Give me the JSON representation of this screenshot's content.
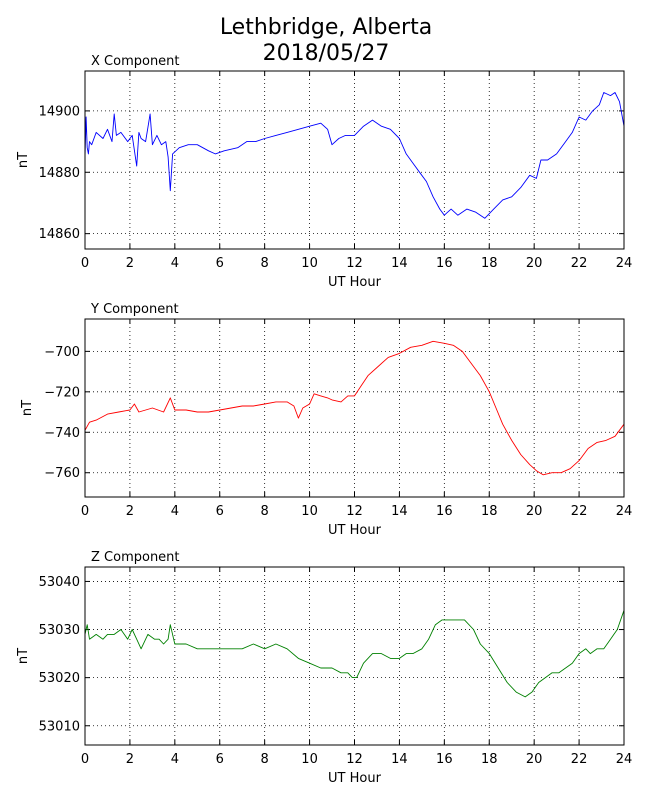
{
  "figure": {
    "title_line1": "Lethbridge, Alberta",
    "title_line2": "2018/05/27"
  },
  "chart_data": [
    {
      "type": "line",
      "title": "X Component",
      "xlabel": "UT Hour",
      "ylabel": "nT",
      "xlim": [
        0,
        24
      ],
      "ylim": [
        14855,
        14913
      ],
      "xticks": [
        0,
        2,
        4,
        6,
        8,
        10,
        12,
        14,
        16,
        18,
        20,
        22,
        24
      ],
      "yticks": [
        14860,
        14880,
        14900
      ],
      "grid": true,
      "color": "#0000ff",
      "x": [
        0,
        0.05,
        0.1,
        0.15,
        0.2,
        0.3,
        0.5,
        0.8,
        1.0,
        1.2,
        1.3,
        1.4,
        1.6,
        1.9,
        2.1,
        2.3,
        2.4,
        2.5,
        2.7,
        2.9,
        3.0,
        3.2,
        3.4,
        3.6,
        3.7,
        3.8,
        3.9,
        4.2,
        4.6,
        5.0,
        5.5,
        5.8,
        6.2,
        6.8,
        7.2,
        7.6,
        8.0,
        8.5,
        9.0,
        9.5,
        10.0,
        10.5,
        10.8,
        11.0,
        11.3,
        11.6,
        12.0,
        12.4,
        12.8,
        13.2,
        13.6,
        14.0,
        14.3,
        14.6,
        14.9,
        15.2,
        15.5,
        15.8,
        16.0,
        16.3,
        16.6,
        17.0,
        17.4,
        17.8,
        18.2,
        18.6,
        19.0,
        19.4,
        19.8,
        20.1,
        20.3,
        20.6,
        21.0,
        21.4,
        21.7,
        22.0,
        22.3,
        22.6,
        22.9,
        23.1,
        23.4,
        23.6,
        23.8,
        24.0
      ],
      "values": [
        14885,
        14898,
        14888,
        14886,
        14890,
        14889,
        14893,
        14891,
        14894,
        14890,
        14899,
        14892,
        14893,
        14890,
        14892,
        14882,
        14893,
        14891,
        14890,
        14899,
        14889,
        14892,
        14889,
        14890,
        14885,
        14874,
        14886,
        14888,
        14889,
        14889,
        14887,
        14886,
        14887,
        14888,
        14890,
        14890,
        14891,
        14892,
        14893,
        14894,
        14895,
        14896,
        14894,
        14889,
        14891,
        14892,
        14892,
        14895,
        14897,
        14895,
        14894,
        14891,
        14886,
        14883,
        14880,
        14877,
        14872,
        14868,
        14866,
        14868,
        14866,
        14868,
        14867,
        14865,
        14868,
        14871,
        14872,
        14875,
        14879,
        14878,
        14884,
        14884,
        14886,
        14890,
        14893,
        14898,
        14897,
        14900,
        14902,
        14906,
        14905,
        14906,
        14903,
        14895
      ]
    },
    {
      "type": "line",
      "title": "Y Component",
      "xlabel": "UT Hour",
      "ylabel": "nT",
      "xlim": [
        0,
        24
      ],
      "ylim": [
        -772,
        -684
      ],
      "xticks": [
        0,
        2,
        4,
        6,
        8,
        10,
        12,
        14,
        16,
        18,
        20,
        22,
        24
      ],
      "yticks": [
        -700,
        -720,
        -740,
        -760
      ],
      "grid": true,
      "color": "#ff0000",
      "x": [
        0,
        0.2,
        0.5,
        1.0,
        1.5,
        2.0,
        2.2,
        2.4,
        3.0,
        3.5,
        3.8,
        4.0,
        4.5,
        5.0,
        5.5,
        6.0,
        6.5,
        7.0,
        7.5,
        8.0,
        8.5,
        9.0,
        9.3,
        9.5,
        9.7,
        10.0,
        10.2,
        10.5,
        10.8,
        11.0,
        11.4,
        11.7,
        12.0,
        12.3,
        12.6,
        13.0,
        13.5,
        14.0,
        14.5,
        15.0,
        15.5,
        16.0,
        16.4,
        16.8,
        17.2,
        17.6,
        18.0,
        18.3,
        18.6,
        19.0,
        19.4,
        19.8,
        20.1,
        20.4,
        20.8,
        21.2,
        21.6,
        22.0,
        22.4,
        22.8,
        23.2,
        23.6,
        24.0
      ],
      "values": [
        -739,
        -735,
        -734,
        -731,
        -730,
        -729,
        -726,
        -730,
        -728,
        -730,
        -723,
        -729,
        -729,
        -730,
        -730,
        -729,
        -728,
        -727,
        -727,
        -726,
        -725,
        -725,
        -727,
        -733,
        -728,
        -726,
        -721,
        -722,
        -723,
        -724,
        -725,
        -722,
        -722,
        -717,
        -712,
        -708,
        -703,
        -701,
        -698,
        -697,
        -695,
        -696,
        -697,
        -700,
        -706,
        -712,
        -720,
        -728,
        -736,
        -744,
        -751,
        -756,
        -759,
        -761,
        -760,
        -760,
        -758,
        -754,
        -748,
        -745,
        -744,
        -742,
        -736
      ]
    },
    {
      "type": "line",
      "title": "Z Component",
      "xlabel": "UT Hour",
      "ylabel": "nT",
      "xlim": [
        0,
        24
      ],
      "ylim": [
        53006,
        53043
      ],
      "xticks": [
        0,
        2,
        4,
        6,
        8,
        10,
        12,
        14,
        16,
        18,
        20,
        22,
        24
      ],
      "yticks": [
        53010,
        53020,
        53030,
        53040
      ],
      "grid": true,
      "color": "#008000",
      "x": [
        0,
        0.1,
        0.2,
        0.5,
        0.8,
        1.0,
        1.3,
        1.6,
        1.9,
        2.1,
        2.3,
        2.5,
        2.8,
        3.1,
        3.3,
        3.5,
        3.7,
        3.8,
        4.0,
        4.5,
        5.0,
        5.5,
        6.0,
        6.5,
        7.0,
        7.5,
        8.0,
        8.5,
        9.0,
        9.5,
        10.0,
        10.5,
        11.0,
        11.4,
        11.7,
        11.9,
        12.1,
        12.4,
        12.8,
        13.2,
        13.6,
        14.0,
        14.3,
        14.6,
        15.0,
        15.3,
        15.6,
        15.9,
        16.2,
        16.5,
        16.9,
        17.3,
        17.6,
        18.0,
        18.4,
        18.8,
        19.2,
        19.6,
        19.9,
        20.2,
        20.5,
        20.8,
        21.1,
        21.4,
        21.7,
        22.0,
        22.3,
        22.5,
        22.8,
        23.1,
        23.4,
        23.7,
        24.0
      ],
      "values": [
        53029,
        53031,
        53028,
        53029,
        53028,
        53029,
        53029,
        53030,
        53028,
        53030,
        53028,
        53026,
        53029,
        53028,
        53028,
        53027,
        53028,
        53031,
        53027,
        53027,
        53026,
        53026,
        53026,
        53026,
        53026,
        53027,
        53026,
        53027,
        53026,
        53024,
        53023,
        53022,
        53022,
        53021,
        53021,
        53020,
        53020,
        53023,
        53025,
        53025,
        53024,
        53024,
        53025,
        53025,
        53026,
        53028,
        53031,
        53032,
        53032,
        53032,
        53032,
        53030,
        53027,
        53025,
        53022,
        53019,
        53017,
        53016,
        53017,
        53019,
        53020,
        53021,
        53021,
        53022,
        53023,
        53025,
        53026,
        53025,
        53026,
        53026,
        53028,
        53030,
        53034
      ]
    }
  ]
}
